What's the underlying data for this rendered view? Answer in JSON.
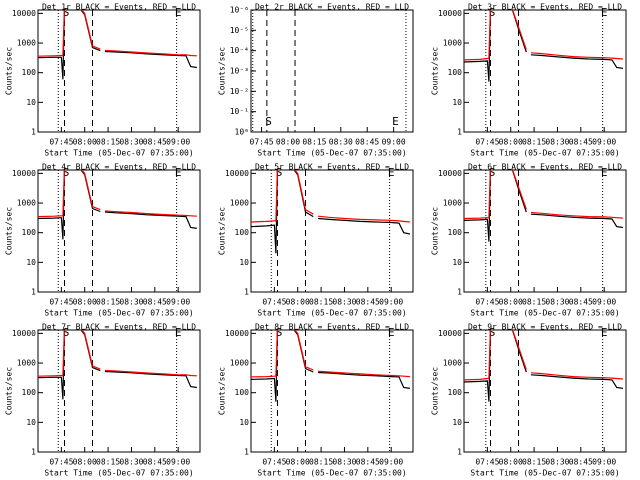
{
  "chart_data": [
    {
      "type": "line",
      "title": "Det 1r BLACK = Events, RED = LLD",
      "xlabel": "Start Time (05-Dec-07 07:35:00)",
      "ylabel": "Counts/sec",
      "log_y": true,
      "ylim": [
        1,
        13000
      ],
      "yticks": [
        1,
        10,
        100,
        1000,
        10000
      ],
      "xlim": [
        "07:30",
        "09:14"
      ],
      "xticks": [
        "07:45",
        "08:00",
        "08:15",
        "08:30",
        "08:45",
        "09:00"
      ],
      "x": [
        "07:30",
        "07:40",
        "07:45",
        "07:46",
        "07:47",
        "07:50",
        "07:55",
        "08:00",
        "08:05",
        "08:10",
        "08:12",
        "08:13",
        "08:20",
        "08:30",
        "08:40",
        "08:50",
        "09:00",
        "09:05",
        "09:08",
        "09:12"
      ],
      "series": [
        {
          "color": "#000000",
          "values": [
            320,
            330,
            330,
            60,
            20000,
            20000,
            20000,
            9000,
            700,
            550,
            null,
            520,
            500,
            470,
            430,
            400,
            380,
            370,
            160,
            150
          ]
        },
        {
          "color": "#ff0000",
          "values": [
            360,
            370,
            380,
            380,
            20000,
            20000,
            20000,
            10000,
            800,
            620,
            null,
            560,
            540,
            500,
            460,
            430,
            400,
            400,
            380,
            370
          ]
        }
      ],
      "dotted": [
        "07:43",
        "08:59"
      ],
      "dashed": [
        "07:47",
        "08:05"
      ],
      "annotations": [
        {
          "text": "S",
          "x": "07:48",
          "pos": "top"
        },
        {
          "text": "E",
          "x": "09:00",
          "pos": "top"
        }
      ]
    },
    {
      "type": "line",
      "title": "Det 2r BLACK = Events, RED = LLD",
      "xlabel": "Start Time (05-Dec-07 07:35:00)",
      "ylabel": "Counts/sec",
      "log_y": true,
      "ylim": [
        1,
        1e-06
      ],
      "yticks": [
        {
          "value": 1,
          "label": "10⁰"
        },
        {
          "value": 0.1,
          "label": "10⁻¹"
        },
        {
          "value": 0.01,
          "label": "10⁻²"
        },
        {
          "value": 0.001,
          "label": "10⁻³"
        },
        {
          "value": 0.0001,
          "label": "10⁻⁴"
        },
        {
          "value": 1e-05,
          "label": "10⁻⁵"
        },
        {
          "value": 1e-06,
          "label": "10⁻⁶"
        }
      ],
      "xlim": [
        "07:39",
        "09:11"
      ],
      "xticks": [
        "07:45",
        "08:00",
        "08:15",
        "08:30",
        "08:45",
        "09:00"
      ],
      "dotted": [
        "07:40",
        "09:07"
      ],
      "dashed": [
        "07:48",
        "08:04"
      ],
      "annotations": [
        {
          "text": "S",
          "x": "07:49",
          "pos": "bottom"
        },
        {
          "text": "E",
          "x": "09:01",
          "pos": "bottom"
        }
      ]
    },
    {
      "type": "line",
      "title": "Det 3r BLACK = Events, RED = LLD",
      "xlabel": "Start Time (05-Dec-07 07:35:00)",
      "ylabel": "Counts/sec",
      "log_y": true,
      "ylim": [
        1,
        13000
      ],
      "yticks": [
        1,
        10,
        100,
        1000,
        10000
      ],
      "xlim": [
        "07:30",
        "09:14"
      ],
      "xticks": [
        "07:45",
        "08:00",
        "08:15",
        "08:30",
        "08:45",
        "09:00"
      ],
      "x": [
        "07:30",
        "07:40",
        "07:45",
        "07:46",
        "07:47",
        "07:50",
        "07:55",
        "08:00",
        "08:05",
        "08:10",
        "08:12",
        "08:13",
        "08:20",
        "08:30",
        "08:40",
        "08:50",
        "09:00",
        "09:05",
        "09:08",
        "09:12"
      ],
      "series": [
        {
          "color": "#000000",
          "values": [
            230,
            240,
            250,
            50,
            20000,
            20000,
            20000,
            20000,
            3000,
            500,
            null,
            400,
            380,
            340,
            310,
            290,
            280,
            270,
            150,
            140
          ]
        },
        {
          "color": "#ff0000",
          "values": [
            270,
            280,
            300,
            300,
            20000,
            20000,
            20000,
            20000,
            3500,
            600,
            null,
            470,
            440,
            390,
            350,
            330,
            320,
            310,
            300,
            290
          ]
        }
      ],
      "dotted": [
        "07:44",
        "08:59"
      ],
      "dashed": [
        "07:47",
        "08:05"
      ],
      "annotations": [
        {
          "text": "S",
          "x": "07:48",
          "pos": "top"
        },
        {
          "text": "E",
          "x": "09:00",
          "pos": "top"
        }
      ]
    },
    {
      "type": "line",
      "title": "Det 4r BLACK = Events, RED = LLD",
      "xlabel": "Start Time (05-Dec-07 07:35:00)",
      "ylabel": "Counts/sec",
      "log_y": true,
      "ylim": [
        1,
        13000
      ],
      "yticks": [
        1,
        10,
        100,
        1000,
        10000
      ],
      "xlim": [
        "07:30",
        "09:14"
      ],
      "xticks": [
        "07:45",
        "08:00",
        "08:15",
        "08:30",
        "08:45",
        "09:00"
      ],
      "x": [
        "07:30",
        "07:40",
        "07:45",
        "07:46",
        "07:47",
        "07:50",
        "07:55",
        "08:00",
        "08:05",
        "08:10",
        "08:12",
        "08:13",
        "08:20",
        "08:30",
        "08:40",
        "08:50",
        "09:00",
        "09:05",
        "09:08",
        "09:12"
      ],
      "series": [
        {
          "color": "#000000",
          "values": [
            300,
            310,
            320,
            60,
            20000,
            20000,
            20000,
            9000,
            650,
            520,
            null,
            500,
            470,
            440,
            400,
            380,
            360,
            350,
            150,
            140
          ]
        },
        {
          "color": "#ff0000",
          "values": [
            350,
            360,
            370,
            370,
            20000,
            20000,
            20000,
            10000,
            750,
            600,
            null,
            540,
            510,
            480,
            440,
            410,
            390,
            380,
            370,
            360
          ]
        }
      ],
      "dotted": [
        "07:43",
        "08:59"
      ],
      "dashed": [
        "07:47",
        "08:05"
      ],
      "annotations": [
        {
          "text": "S",
          "x": "07:48",
          "pos": "top"
        },
        {
          "text": "E",
          "x": "09:00",
          "pos": "top"
        }
      ]
    },
    {
      "type": "line",
      "title": "Det 5r BLACK = Events, RED = LLD",
      "xlabel": "Start Time (05-Dec-07 07:35:00)",
      "ylabel": "Counts/sec",
      "log_y": true,
      "ylim": [
        1,
        13000
      ],
      "yticks": [
        1,
        10,
        100,
        1000,
        10000
      ],
      "xlim": [
        "07:30",
        "09:14"
      ],
      "xticks": [
        "07:45",
        "08:00",
        "08:15",
        "08:30",
        "08:45",
        "09:00"
      ],
      "x": [
        "07:30",
        "07:40",
        "07:45",
        "07:46",
        "07:47",
        "07:50",
        "07:55",
        "08:00",
        "08:05",
        "08:10",
        "08:12",
        "08:13",
        "08:20",
        "08:30",
        "08:40",
        "08:50",
        "09:00",
        "09:05",
        "09:08",
        "09:12"
      ],
      "series": [
        {
          "color": "#000000",
          "values": [
            160,
            170,
            180,
            20,
            20000,
            20000,
            20000,
            9000,
            500,
            350,
            null,
            300,
            280,
            260,
            240,
            230,
            220,
            210,
            100,
            90
          ]
        },
        {
          "color": "#ff0000",
          "values": [
            230,
            240,
            250,
            250,
            20000,
            20000,
            20000,
            10000,
            600,
            420,
            null,
            360,
            330,
            300,
            280,
            270,
            260,
            250,
            240,
            230
          ]
        }
      ],
      "dotted": [
        "07:43",
        "08:59"
      ],
      "dashed": [
        "07:47",
        "08:05"
      ],
      "annotations": [
        {
          "text": "S",
          "x": "07:48",
          "pos": "top"
        },
        {
          "text": "E",
          "x": "09:00",
          "pos": "top"
        }
      ]
    },
    {
      "type": "line",
      "title": "Det 6r BLACK = Events, RED = LLD",
      "xlabel": "Start Time (05-Dec-07 07:35:00)",
      "ylabel": "Counts/sec",
      "log_y": true,
      "ylim": [
        1,
        13000
      ],
      "yticks": [
        1,
        10,
        100,
        1000,
        10000
      ],
      "xlim": [
        "07:30",
        "09:14"
      ],
      "xticks": [
        "07:45",
        "08:00",
        "08:15",
        "08:30",
        "08:45",
        "09:00"
      ],
      "x": [
        "07:30",
        "07:40",
        "07:45",
        "07:46",
        "07:47",
        "07:50",
        "07:55",
        "08:00",
        "08:05",
        "08:10",
        "08:12",
        "08:13",
        "08:20",
        "08:30",
        "08:40",
        "08:50",
        "09:00",
        "09:05",
        "09:08",
        "09:12"
      ],
      "series": [
        {
          "color": "#000000",
          "values": [
            260,
            270,
            280,
            50,
            20000,
            20000,
            20000,
            20000,
            3000,
            500,
            null,
            420,
            400,
            360,
            330,
            310,
            300,
            290,
            160,
            150
          ]
        },
        {
          "color": "#ff0000",
          "values": [
            300,
            310,
            320,
            320,
            20000,
            20000,
            20000,
            20000,
            3500,
            620,
            null,
            480,
            450,
            400,
            370,
            350,
            340,
            330,
            320,
            310
          ]
        }
      ],
      "dotted": [
        "07:44",
        "08:59"
      ],
      "dashed": [
        "07:47",
        "08:05"
      ],
      "annotations": [
        {
          "text": "S",
          "x": "07:48",
          "pos": "top"
        },
        {
          "text": "E",
          "x": "09:00",
          "pos": "top"
        }
      ]
    },
    {
      "type": "line",
      "title": "Det 7r BLACK = Events, RED = LLD",
      "xlabel": "Start Time (05-Dec-07 07:35:00)",
      "ylabel": "Counts/sec",
      "log_y": true,
      "ylim": [
        1,
        13000
      ],
      "yticks": [
        1,
        10,
        100,
        1000,
        10000
      ],
      "xlim": [
        "07:30",
        "09:14"
      ],
      "xticks": [
        "07:45",
        "08:00",
        "08:15",
        "08:30",
        "08:45",
        "09:00"
      ],
      "x": [
        "07:30",
        "07:40",
        "07:45",
        "07:46",
        "07:47",
        "07:50",
        "07:55",
        "08:00",
        "08:05",
        "08:10",
        "08:12",
        "08:13",
        "08:20",
        "08:30",
        "08:40",
        "08:50",
        "09:00",
        "09:05",
        "09:08",
        "09:12"
      ],
      "series": [
        {
          "color": "#000000",
          "values": [
            320,
            330,
            330,
            60,
            20000,
            20000,
            20000,
            9000,
            700,
            550,
            null,
            520,
            500,
            470,
            430,
            400,
            380,
            370,
            160,
            150
          ]
        },
        {
          "color": "#ff0000",
          "values": [
            360,
            370,
            380,
            380,
            20000,
            20000,
            20000,
            10000,
            800,
            620,
            null,
            560,
            540,
            500,
            460,
            430,
            400,
            400,
            380,
            370
          ]
        }
      ],
      "dotted": [
        "07:43",
        "08:59"
      ],
      "dashed": [
        "07:47",
        "08:05"
      ],
      "annotations": [
        {
          "text": "S",
          "x": "07:48",
          "pos": "top"
        },
        {
          "text": "E",
          "x": "09:00",
          "pos": "top"
        }
      ]
    },
    {
      "type": "line",
      "title": "Det 8r BLACK = Events, RED = LLD",
      "xlabel": "Start Time (05-Dec-07 07:35:00)",
      "ylabel": "Counts/sec",
      "log_y": true,
      "ylim": [
        1,
        13000
      ],
      "yticks": [
        1,
        10,
        100,
        1000,
        10000
      ],
      "xlim": [
        "07:30",
        "09:14"
      ],
      "xticks": [
        "07:45",
        "08:00",
        "08:15",
        "08:30",
        "08:45",
        "09:00"
      ],
      "x": [
        "07:30",
        "07:40",
        "07:45",
        "07:46",
        "07:47",
        "07:50",
        "07:55",
        "08:00",
        "08:05",
        "08:10",
        "08:12",
        "08:13",
        "08:20",
        "08:30",
        "08:40",
        "08:50",
        "09:00",
        "09:05",
        "09:08",
        "09:12"
      ],
      "series": [
        {
          "color": "#000000",
          "values": [
            280,
            290,
            300,
            50,
            20000,
            20000,
            20000,
            9000,
            650,
            500,
            null,
            480,
            460,
            420,
            390,
            370,
            350,
            340,
            150,
            140
          ]
        },
        {
          "color": "#ff0000",
          "values": [
            340,
            350,
            360,
            360,
            20000,
            20000,
            20000,
            10000,
            750,
            580,
            null,
            530,
            500,
            460,
            430,
            400,
            380,
            370,
            360,
            350
          ]
        }
      ],
      "dotted": [
        "07:43",
        "08:59"
      ],
      "dashed": [
        "07:47",
        "08:05"
      ],
      "annotations": [
        {
          "text": "S",
          "x": "07:48",
          "pos": "top"
        },
        {
          "text": "E",
          "x": "09:00",
          "pos": "top"
        }
      ]
    },
    {
      "type": "line",
      "title": "Det 9r BLACK = Events, RED = LLD",
      "xlabel": "Start Time (05-Dec-07 07:35:00)",
      "ylabel": "Counts/sec",
      "log_y": true,
      "ylim": [
        1,
        13000
      ],
      "yticks": [
        1,
        10,
        100,
        1000,
        10000
      ],
      "xlim": [
        "07:30",
        "09:14"
      ],
      "xticks": [
        "07:45",
        "08:00",
        "08:15",
        "08:30",
        "08:45",
        "09:00"
      ],
      "x": [
        "07:30",
        "07:40",
        "07:45",
        "07:46",
        "07:47",
        "07:50",
        "07:55",
        "08:00",
        "08:05",
        "08:10",
        "08:12",
        "08:13",
        "08:20",
        "08:30",
        "08:40",
        "08:50",
        "09:00",
        "09:05",
        "09:08",
        "09:12"
      ],
      "series": [
        {
          "color": "#000000",
          "values": [
            230,
            240,
            250,
            50,
            20000,
            20000,
            20000,
            20000,
            3000,
            500,
            null,
            400,
            380,
            340,
            310,
            290,
            280,
            270,
            150,
            140
          ]
        },
        {
          "color": "#ff0000",
          "values": [
            270,
            280,
            300,
            300,
            20000,
            20000,
            20000,
            20000,
            3500,
            600,
            null,
            470,
            440,
            390,
            350,
            330,
            320,
            310,
            300,
            290
          ]
        }
      ],
      "dotted": [
        "07:44",
        "08:59"
      ],
      "dashed": [
        "07:47",
        "08:05"
      ],
      "annotations": [
        {
          "text": "S",
          "x": "07:48",
          "pos": "top"
        },
        {
          "text": "E",
          "x": "09:00",
          "pos": "top"
        }
      ]
    }
  ]
}
